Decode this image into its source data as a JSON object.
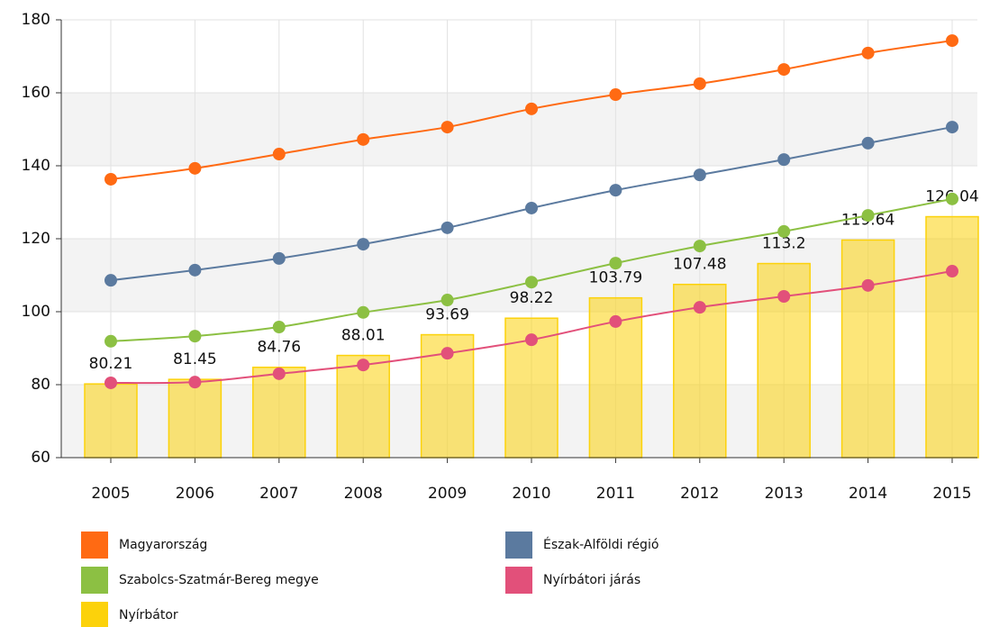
{
  "chart_data": {
    "type": "line",
    "categories": [
      "2005",
      "2006",
      "2007",
      "2008",
      "2009",
      "2010",
      "2011",
      "2012",
      "2013",
      "2014",
      "2015"
    ],
    "series": [
      {
        "name": "Magyarország",
        "type": "line",
        "color": "#ff6a13",
        "values": [
          136.3,
          139.3,
          143.2,
          147.2,
          150.6,
          155.6,
          159.5,
          162.5,
          166.4,
          170.9,
          174.3
        ]
      },
      {
        "name": "Észak-Alföldi régió",
        "type": "line",
        "color": "#5b7a9f",
        "values": [
          108.6,
          111.4,
          114.6,
          118.5,
          123,
          128.4,
          133.3,
          137.5,
          141.7,
          146.2,
          150.6
        ]
      },
      {
        "name": "Szabolcs-Szatmár-Bereg megye",
        "type": "line",
        "color": "#8cc043",
        "values": [
          91.9,
          93.3,
          95.8,
          99.8,
          103.2,
          108.1,
          113.3,
          118,
          122,
          126.4,
          130.9
        ]
      },
      {
        "name": "Nyírbátori járás",
        "type": "line",
        "color": "#e2507a",
        "values": [
          80.5,
          80.7,
          83,
          85.4,
          88.6,
          92.3,
          97.3,
          101.2,
          104.2,
          107.2,
          111.1
        ]
      },
      {
        "name": "Nyírbátor",
        "type": "bar",
        "color": "#fcd20b",
        "values": [
          80.21,
          81.45,
          84.76,
          88.01,
          93.69,
          98.22,
          103.79,
          107.48,
          113.2,
          119.64,
          126.04
        ]
      }
    ],
    "ylim": [
      60,
      180
    ],
    "yticks": [
      60,
      80,
      100,
      120,
      140,
      160,
      180
    ],
    "grid": true
  }
}
